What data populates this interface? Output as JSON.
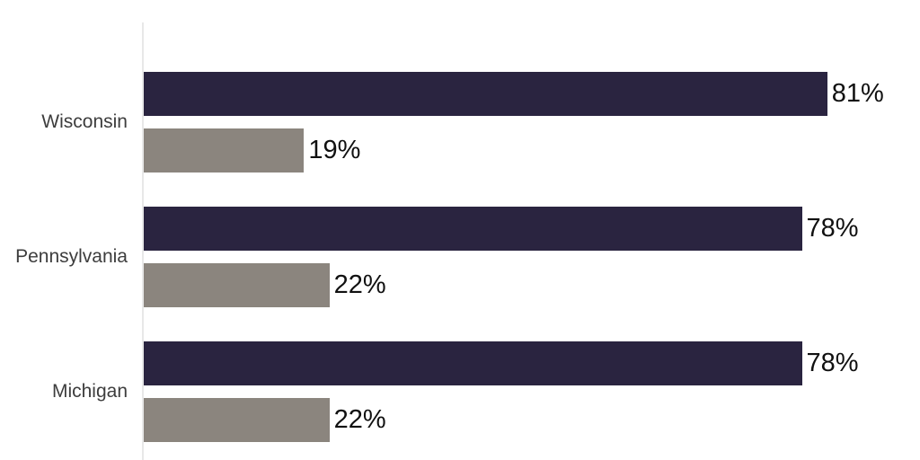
{
  "chart": {
    "background_color": "#ffffff",
    "axis_line_color": "#e8e8e8",
    "category_label_color": "#3d3d3d",
    "value_label_color": "#111111"
  },
  "chart_data": {
    "type": "bar",
    "orientation": "horizontal",
    "title": "",
    "xlabel": "",
    "ylabel": "",
    "categories": [
      "Wisconsin",
      "Pennsylvania",
      "Michigan"
    ],
    "series": [
      {
        "name": "dark-navy-series",
        "color": "#2a2440",
        "values": [
          81,
          78,
          78
        ],
        "labels": [
          "81%",
          "78%",
          "78%"
        ]
      },
      {
        "name": "gray-series",
        "color": "#8b857e",
        "values": [
          19,
          22,
          22
        ],
        "labels": [
          "19%",
          "22%",
          "22%"
        ]
      }
    ],
    "xlim": [
      0,
      92
    ],
    "grid": false,
    "legend": "none",
    "value_label_position": "outside-end"
  }
}
